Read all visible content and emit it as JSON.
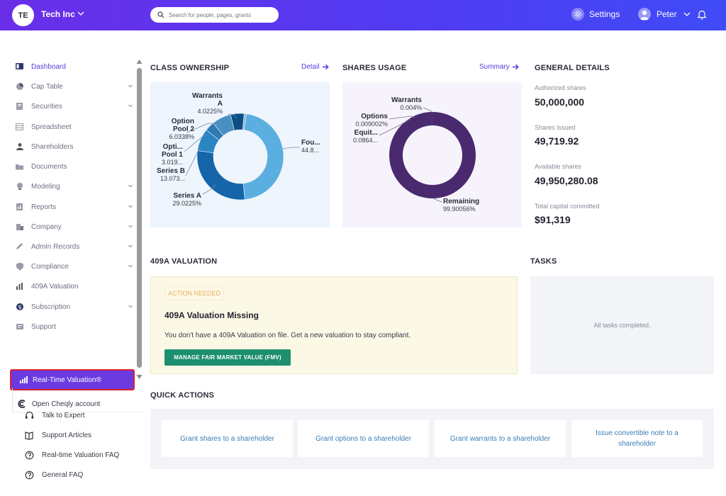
{
  "topbar": {
    "org_initials": "TE",
    "org_name": "Tech Inc",
    "search_placeholder": "Search for people, pages, grants",
    "settings_label": "Settings",
    "user_name": "Peter"
  },
  "sidebar": {
    "items": [
      {
        "label": "Dashboard",
        "icon": "dashboard-icon",
        "active": true
      },
      {
        "label": "Cap Table",
        "icon": "pie-chart-icon",
        "expandable": true
      },
      {
        "label": "Securities",
        "icon": "certificate-icon",
        "expandable": true
      },
      {
        "label": "Spreadsheet",
        "icon": "table-icon"
      },
      {
        "label": "Shareholders",
        "icon": "person-icon"
      },
      {
        "label": "Documents",
        "icon": "folder-icon"
      },
      {
        "label": "Modeling",
        "icon": "bulb-icon",
        "expandable": true
      },
      {
        "label": "Reports",
        "icon": "report-icon",
        "expandable": true
      },
      {
        "label": "Company",
        "icon": "building-icon",
        "expandable": true
      },
      {
        "label": "Admin Records",
        "icon": "pencil-icon",
        "expandable": true
      },
      {
        "label": "Compliance",
        "icon": "shield-icon",
        "expandable": true
      },
      {
        "label": "409A Valuation",
        "icon": "bar-chart-icon"
      },
      {
        "label": "Subscription",
        "icon": "dollar-icon",
        "expandable": true
      },
      {
        "label": "Support",
        "icon": "support-icon"
      }
    ],
    "highlight_item": {
      "label": "Real-Time Valuation®",
      "icon": "bar-chart-icon"
    },
    "cheqly_item": {
      "label": "Open Cheqly account",
      "icon": "cheqly-logo-icon"
    },
    "help_items": [
      {
        "label": "Talk to Expert",
        "icon": "headset-icon"
      },
      {
        "label": "Support Articles",
        "icon": "book-icon"
      },
      {
        "label": "Real-time Valuation FAQ",
        "icon": "help-circle-icon"
      },
      {
        "label": "General FAQ",
        "icon": "help-circle-icon"
      }
    ]
  },
  "class_ownership": {
    "title": "CLASS OWNERSHIP",
    "link": "Detail",
    "labels": {
      "warrants_name": "Warrants A",
      "warrants_pct": "4.0225%",
      "option2_name": "Option Pool 2",
      "option2_pct": "6.0338%",
      "option1_name": "Opti... Pool 1",
      "option1_pct": "3.019...",
      "seriesb_name": "Series B",
      "seriesb_pct": "13.073...",
      "seriesa_name": "Series A",
      "seriesa_pct": "29.0225%",
      "founders_name": "Fou...",
      "founders_pct": "44.8..."
    },
    "colors": [
      "#5aaee0",
      "#1565a8",
      "#2b85c2",
      "#2f7ab4",
      "#4a8fc1",
      "#0d4f85",
      "#88b6d8"
    ]
  },
  "shares_usage": {
    "title": "SHARES USAGE",
    "link": "Summary",
    "labels": {
      "warrants_name": "Warrants",
      "warrants_pct": "0.004%",
      "options_name": "Options",
      "options_pct": "0.009002%",
      "equity_name": "Equit...",
      "equity_pct": "0.0864...",
      "remaining_name": "Remaining",
      "remaining_pct": "99.90056%"
    },
    "colors": [
      "#4a2a6e"
    ]
  },
  "general_details": {
    "title": "GENERAL DETAILS",
    "items": [
      {
        "label": "Authorized shares",
        "value": "50,000,000"
      },
      {
        "label": "Shares Issued",
        "value": "49,719.92"
      },
      {
        "label": "Available shares",
        "value": "49,950,280.08"
      },
      {
        "label": "Total capital committed",
        "value": "$91,319"
      }
    ]
  },
  "valuation": {
    "title": "409A VALUATION",
    "badge": "ACTION NEEDED",
    "card_title": "409A Valuation Missing",
    "description": "You don't have a 409A Valuation on file. Get a new valuation to stay compliant.",
    "button": "MANAGE FAIR MARKET VALUE (FMV)"
  },
  "tasks": {
    "title": "TASKS",
    "empty": "All tasks completed."
  },
  "quick_actions": {
    "title": "QUICK ACTIONS",
    "buttons": [
      "Grant shares to a shareholder",
      "Grant options to a shareholder",
      "Grant warrants to a shareholder",
      "Issue convertible note to a shareholder"
    ]
  }
}
